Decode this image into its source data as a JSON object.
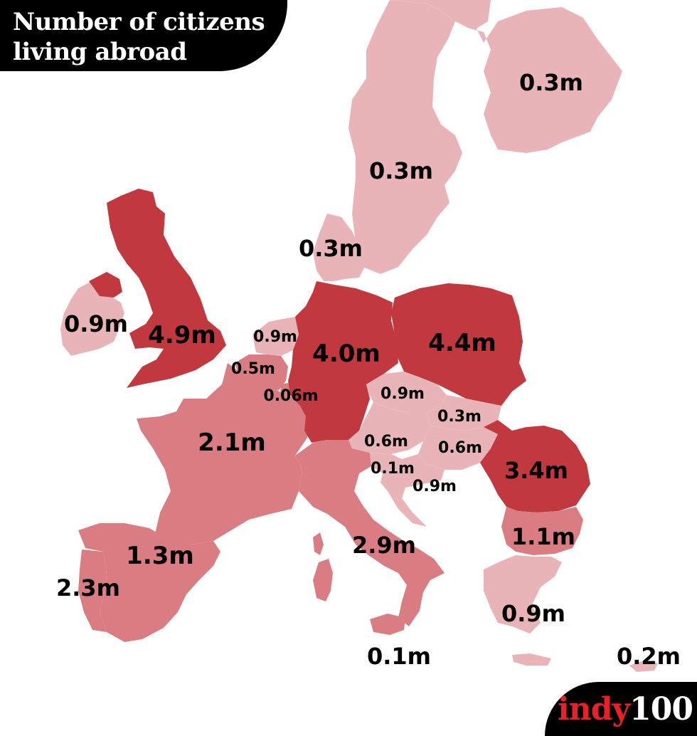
{
  "title": "Number of citizens living abroad",
  "logo": {
    "part1": "indy",
    "part2": "100"
  },
  "colors": {
    "dark": "#c2383f",
    "medium": "#d97d82",
    "light": "#e9b4b7",
    "background": "#ffffff",
    "black": "#000000"
  },
  "countries": [
    {
      "id": "finland",
      "label": "0.3m",
      "shade": "light"
    },
    {
      "id": "sweden",
      "label": "0.3m",
      "shade": "light"
    },
    {
      "id": "denmark",
      "label": "0.3m",
      "shade": "light"
    },
    {
      "id": "ireland",
      "label": "0.9m",
      "shade": "light"
    },
    {
      "id": "united-kingdom",
      "label": "4.9m",
      "shade": "dark"
    },
    {
      "id": "netherlands",
      "label": "0.9m",
      "shade": "light"
    },
    {
      "id": "belgium",
      "label": "0.5m",
      "shade": "medium"
    },
    {
      "id": "luxembourg",
      "label": "0.06m",
      "shade": "medium"
    },
    {
      "id": "germany",
      "label": "4.0m",
      "shade": "dark"
    },
    {
      "id": "poland",
      "label": "4.4m",
      "shade": "dark"
    },
    {
      "id": "czechia",
      "label": "0.9m",
      "shade": "light"
    },
    {
      "id": "slovakia",
      "label": "0.3m",
      "shade": "light"
    },
    {
      "id": "austria",
      "label": "0.6m",
      "shade": "light"
    },
    {
      "id": "hungary",
      "label": "0.6m",
      "shade": "light"
    },
    {
      "id": "slovenia",
      "label": "0.1m",
      "shade": "light"
    },
    {
      "id": "croatia",
      "label": "0.9m",
      "shade": "light"
    },
    {
      "id": "romania",
      "label": "3.4m",
      "shade": "dark"
    },
    {
      "id": "bulgaria",
      "label": "1.1m",
      "shade": "medium"
    },
    {
      "id": "france",
      "label": "2.1m",
      "shade": "medium"
    },
    {
      "id": "italy",
      "label": "2.9m",
      "shade": "medium"
    },
    {
      "id": "spain",
      "label": "1.3m",
      "shade": "medium"
    },
    {
      "id": "portugal",
      "label": "2.3m",
      "shade": "medium"
    },
    {
      "id": "greece",
      "label": "0.9m",
      "shade": "light"
    },
    {
      "id": "malta",
      "label": "0.1m",
      "shade": "light"
    },
    {
      "id": "cyprus",
      "label": "0.2m",
      "shade": "light"
    }
  ]
}
